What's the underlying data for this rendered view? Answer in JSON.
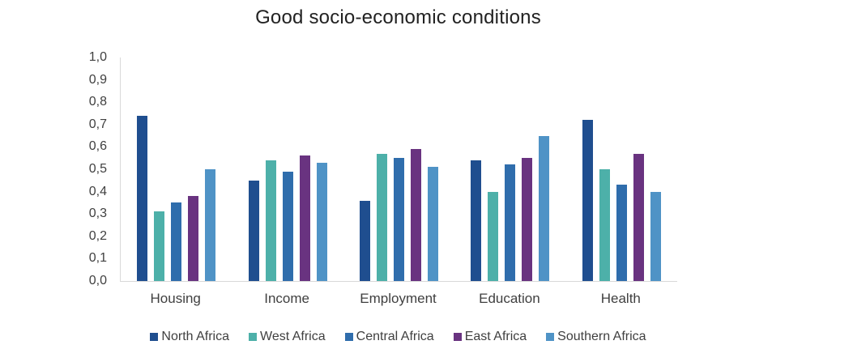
{
  "chart_data": {
    "type": "bar",
    "title": "Good socio-economic conditions",
    "categories": [
      "Housing",
      "Income",
      "Employment",
      "Education",
      "Health"
    ],
    "series": [
      {
        "name": "North Africa",
        "color": "#1F4E8F",
        "values": [
          0.74,
          0.45,
          0.36,
          0.54,
          0.72
        ]
      },
      {
        "name": "West Africa",
        "color": "#4DB0A9",
        "values": [
          0.31,
          0.54,
          0.57,
          0.4,
          0.5
        ]
      },
      {
        "name": "Central Africa",
        "color": "#2F6DAC",
        "values": [
          0.35,
          0.49,
          0.55,
          0.52,
          0.43
        ]
      },
      {
        "name": "East Africa",
        "color": "#693380",
        "values": [
          0.38,
          0.56,
          0.59,
          0.55,
          0.57
        ]
      },
      {
        "name": "Southern Africa",
        "color": "#4F93C6",
        "values": [
          0.5,
          0.53,
          0.51,
          0.65,
          0.4
        ]
      }
    ],
    "ylim": [
      0.0,
      1.0
    ],
    "ytick_step": 0.1,
    "ytick_labels": [
      "0,0",
      "0,1",
      "0,2",
      "0,3",
      "0,4",
      "0,5",
      "0,6",
      "0,7",
      "0,8",
      "0,9",
      "1,0"
    ],
    "decimal_separator": ",",
    "grid": false,
    "legend_position": "bottom",
    "axis_line_color": "#D9D9D9",
    "title_color": "#222222",
    "label_color": "#404040",
    "background_color": "#FFFFFF"
  }
}
